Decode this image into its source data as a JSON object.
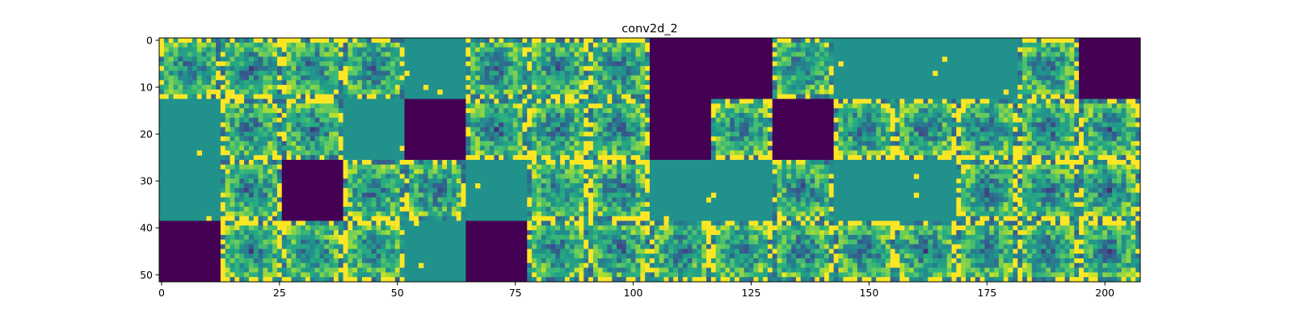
{
  "chart_data": {
    "type": "heatmap",
    "title": "conv2d_2",
    "xlabel": "",
    "ylabel": "",
    "colormap": "viridis",
    "colors": {
      "dark": "#440154",
      "teal": "#21918c",
      "bright": "#fde725"
    },
    "xlim": [
      0,
      208
    ],
    "ylim": [
      52,
      0
    ],
    "x_ticks": [
      0,
      25,
      50,
      75,
      100,
      125,
      150,
      175,
      200
    ],
    "y_ticks": [
      0,
      10,
      20,
      30,
      40,
      50
    ],
    "grid": {
      "rows": 4,
      "cols": 16,
      "tile_size": 13
    },
    "tile_kinds": [
      [
        "pattern",
        "pattern",
        "pattern",
        "pattern",
        "flat",
        "pattern",
        "pattern",
        "pattern",
        "dark",
        "dark",
        "pattern",
        "flat",
        "flat",
        "flat",
        "pattern",
        "dark"
      ],
      [
        "flat",
        "pattern",
        "pattern",
        "flat",
        "dark",
        "pattern",
        "pattern",
        "pattern",
        "dark",
        "pattern",
        "dark",
        "pattern",
        "pattern",
        "pattern",
        "pattern",
        "pattern"
      ],
      [
        "flat",
        "pattern",
        "dark",
        "pattern",
        "pattern",
        "flat",
        "pattern",
        "pattern",
        "flat",
        "flat",
        "pattern",
        "flat",
        "flat",
        "pattern",
        "pattern",
        "pattern"
      ],
      [
        "dark",
        "pattern",
        "pattern",
        "pattern",
        "flat",
        "dark",
        "pattern",
        "pattern",
        "pattern",
        "pattern",
        "pattern",
        "pattern",
        "pattern",
        "pattern",
        "pattern",
        "pattern"
      ]
    ]
  }
}
